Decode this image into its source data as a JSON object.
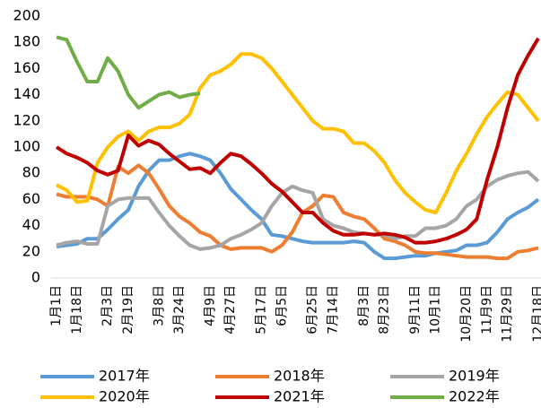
{
  "chart_data": {
    "type": "line",
    "categories": [
      "1月1日",
      null,
      "1月18日",
      null,
      null,
      "2月3日",
      null,
      "2月19日",
      null,
      null,
      "3月8日",
      null,
      "3月24日",
      null,
      null,
      "4月9日",
      null,
      "4月27日",
      null,
      null,
      "5月17日",
      null,
      "6月5日",
      null,
      null,
      "6月25日",
      null,
      "7月14日",
      null,
      null,
      "8月3日",
      null,
      "8月23日",
      null,
      null,
      "9月11日",
      null,
      "10月1日",
      null,
      null,
      "10月20日",
      null,
      "11月9日",
      null,
      "11月29日",
      null,
      null,
      "12月18日"
    ],
    "series": [
      {
        "name": "2017年",
        "color": "#5b9bd5",
        "values": [
          24,
          25,
          26,
          30,
          30,
          37,
          45,
          52,
          70,
          82,
          90,
          90,
          93,
          95,
          93,
          90,
          80,
          68,
          60,
          52,
          45,
          33,
          32,
          30,
          28,
          27,
          27,
          27,
          27,
          28,
          27,
          20,
          15,
          15,
          16,
          17,
          17,
          19,
          20,
          21,
          25,
          25,
          27,
          35,
          45,
          50,
          54,
          60
        ]
      },
      {
        "name": "2018年",
        "color": "#ed7d31",
        "values": [
          64,
          62,
          62,
          62,
          60,
          55,
          85,
          80,
          86,
          80,
          68,
          55,
          47,
          42,
          35,
          32,
          25,
          22,
          23,
          23,
          23,
          20,
          25,
          35,
          50,
          55,
          63,
          62,
          50,
          47,
          45,
          38,
          30,
          28,
          25,
          20,
          19,
          19,
          18,
          17,
          16,
          16,
          16,
          15,
          15,
          20,
          21,
          23
        ]
      },
      {
        "name": "2019年",
        "color": "#a5a5a5",
        "values": [
          25,
          27,
          28,
          26,
          26,
          55,
          60,
          61,
          61,
          61,
          50,
          40,
          32,
          25,
          22,
          23,
          25,
          30,
          33,
          37,
          42,
          55,
          65,
          70,
          67,
          65,
          45,
          40,
          38,
          35,
          34,
          33,
          33,
          30,
          32,
          32,
          38,
          38,
          40,
          45,
          55,
          60,
          70,
          75,
          78,
          80,
          81,
          74
        ]
      },
      {
        "name": "2020年",
        "color": "#ffc000",
        "values": [
          71,
          67,
          58,
          59,
          88,
          100,
          108,
          112,
          105,
          112,
          115,
          115,
          118,
          125,
          145,
          155,
          158,
          163,
          171,
          171,
          168,
          160,
          150,
          140,
          130,
          120,
          114,
          114,
          112,
          103,
          103,
          97,
          88,
          75,
          65,
          58,
          52,
          50,
          65,
          82,
          95,
          110,
          123,
          133,
          142,
          140,
          130,
          120
        ]
      },
      {
        "name": "2021年",
        "color": "#c00000",
        "values": [
          100,
          95,
          92,
          88,
          82,
          79,
          82,
          109,
          101,
          105,
          102,
          95,
          89,
          83,
          84,
          80,
          88,
          95,
          93,
          87,
          80,
          72,
          66,
          58,
          50,
          50,
          42,
          36,
          33,
          33,
          34,
          33,
          34,
          33,
          31,
          27,
          27,
          28,
          30,
          33,
          37,
          45,
          75,
          100,
          130,
          155,
          170,
          183
        ]
      },
      {
        "name": "2022年",
        "color": "#70ad47",
        "values": [
          184,
          182,
          165,
          150,
          150,
          168,
          158,
          140,
          130,
          135,
          140,
          142,
          138,
          140,
          141,
          null,
          null,
          null,
          null,
          null,
          null,
          null,
          null,
          null,
          null,
          null,
          null,
          null,
          null,
          null,
          null,
          null,
          null,
          null,
          null,
          null,
          null,
          null,
          null,
          null,
          null,
          null,
          null,
          null,
          null,
          null,
          null,
          null
        ]
      }
    ],
    "ylim": [
      0,
      200
    ],
    "yticks": [
      0,
      20,
      40,
      60,
      80,
      100,
      120,
      140,
      160,
      180,
      200
    ]
  }
}
